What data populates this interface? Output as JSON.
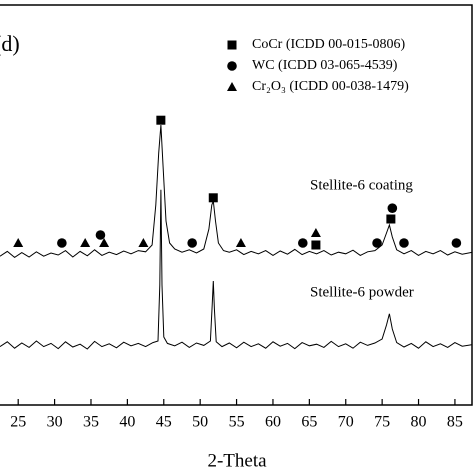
{
  "chart_data": {
    "type": "line",
    "panel_label": "(d)",
    "xlabel": "2-Theta",
    "xlim": [
      22.5,
      87.4
    ],
    "ylim": [
      0,
      100
    ],
    "xticks": [
      25,
      30,
      35,
      40,
      45,
      50,
      55,
      60,
      65,
      70,
      75,
      80,
      85
    ],
    "series": [
      {
        "name": "Stellite-6 coating",
        "color": "#000000",
        "x": [
          22.5,
          23.5,
          24.5,
          25.5,
          26.5,
          27.5,
          28.5,
          29.5,
          30.5,
          31.5,
          32.5,
          33.5,
          34.5,
          35.5,
          36.5,
          37.5,
          38.5,
          39.5,
          40.5,
          41.5,
          42.5,
          43.4,
          43.9,
          44.3,
          44.6,
          44.9,
          45.3,
          45.8,
          46.5,
          47.5,
          48.5,
          49.5,
          50.5,
          51.2,
          51.6,
          51.8,
          52.1,
          52.5,
          53.2,
          54,
          55,
          56,
          57,
          58,
          59,
          60,
          61,
          62,
          63,
          64,
          65,
          66,
          67,
          68,
          69,
          70,
          71,
          72,
          73,
          74,
          75,
          75.6,
          76,
          76.4,
          77,
          78,
          79,
          80,
          81,
          82,
          83,
          84,
          85,
          86,
          87.4
        ],
        "y": [
          37.2,
          38.4,
          36.9,
          38.1,
          37,
          38.3,
          37.2,
          38,
          37.5,
          38.6,
          37,
          38.4,
          37.3,
          38.8,
          37.4,
          38.2,
          37.6,
          38.5,
          37.8,
          38.6,
          38.3,
          40,
          50,
          63,
          70,
          60,
          46,
          40.5,
          39,
          38.2,
          38.8,
          38,
          39,
          44,
          50,
          51,
          46,
          40.5,
          38.6,
          38.2,
          38.8,
          37.6,
          38.4,
          37.8,
          38.6,
          37.4,
          38.5,
          37.7,
          38.9,
          37.6,
          38.4,
          37.8,
          38.6,
          37.5,
          38.2,
          37.8,
          38.7,
          37.4,
          38.3,
          38.6,
          40,
          43,
          45,
          42,
          38.8,
          37.8,
          38.6,
          37.4,
          38.4,
          37.8,
          38.6,
          37.5,
          38.3,
          37.7,
          38.2
        ]
      },
      {
        "name": "Stellite-6 powder",
        "color": "#000000",
        "x": [
          22.5,
          23.5,
          24.5,
          25.5,
          26.5,
          27.5,
          28.5,
          29.5,
          30.5,
          31.5,
          32.5,
          33.5,
          34.5,
          35.5,
          36.5,
          37.5,
          38.5,
          39.5,
          40.5,
          41.5,
          42.5,
          43.5,
          44.2,
          44.45,
          44.6,
          44.75,
          45,
          45.5,
          46.5,
          47.5,
          48.5,
          49.5,
          50.5,
          51.4,
          51.65,
          51.8,
          51.95,
          52.2,
          53,
          54,
          55,
          56,
          57,
          58,
          59,
          60,
          61,
          62,
          63,
          64,
          65,
          66,
          67,
          68,
          69,
          70,
          71,
          72,
          73,
          74,
          75,
          75.6,
          76,
          76.4,
          77,
          78,
          79,
          80,
          81,
          82,
          83,
          84,
          85,
          86,
          87.4
        ],
        "y": [
          14.6,
          15.8,
          14.2,
          15.5,
          14.4,
          16,
          14.6,
          15.4,
          14.1,
          15.8,
          14.5,
          15.2,
          14,
          15.9,
          14.6,
          15.3,
          14.3,
          15.7,
          14.8,
          15.4,
          14.6,
          15.6,
          16,
          30,
          53.8,
          30,
          17,
          15.4,
          14.8,
          15.7,
          14.4,
          15.5,
          14.9,
          16,
          25,
          31,
          24,
          15.8,
          14.6,
          15.5,
          14.3,
          15.7,
          14.6,
          15.3,
          14.2,
          15.8,
          14.7,
          15.4,
          14.1,
          15.6,
          14.8,
          15.2,
          14.4,
          15.9,
          14.6,
          15.3,
          14.2,
          15.7,
          14.9,
          15.5,
          16.5,
          20,
          22.8,
          19,
          15.6,
          14.5,
          15.4,
          14.2,
          15.8,
          14.6,
          15.3,
          14.4,
          15.6,
          14.7,
          15.1
        ]
      }
    ],
    "markers": [
      {
        "name": "CoCr  (ICDD 00-015-0806)",
        "shape": "square",
        "x": [
          44.6,
          51.8,
          65.9,
          76.2
        ],
        "y": [
          71.2,
          51.8,
          40,
          46.5
        ]
      },
      {
        "name": "WC  (ICDD 03-065-4539)",
        "shape": "circle",
        "x": [
          31,
          36.3,
          48.9,
          64.1,
          74.3,
          76.4,
          78,
          85.2
        ],
        "y": [
          40.5,
          42.5,
          40.5,
          40.5,
          40.5,
          49.2,
          40.5,
          40.5
        ]
      },
      {
        "name": "Cr₂O₃  (ICDD 00-038-1479)",
        "shape": "triangle",
        "x": [
          25,
          34.2,
          36.8,
          42.2,
          55.6,
          65.9
        ],
        "y": [
          40.5,
          40.5,
          40.5,
          40.5,
          40.5,
          43
        ]
      }
    ]
  }
}
